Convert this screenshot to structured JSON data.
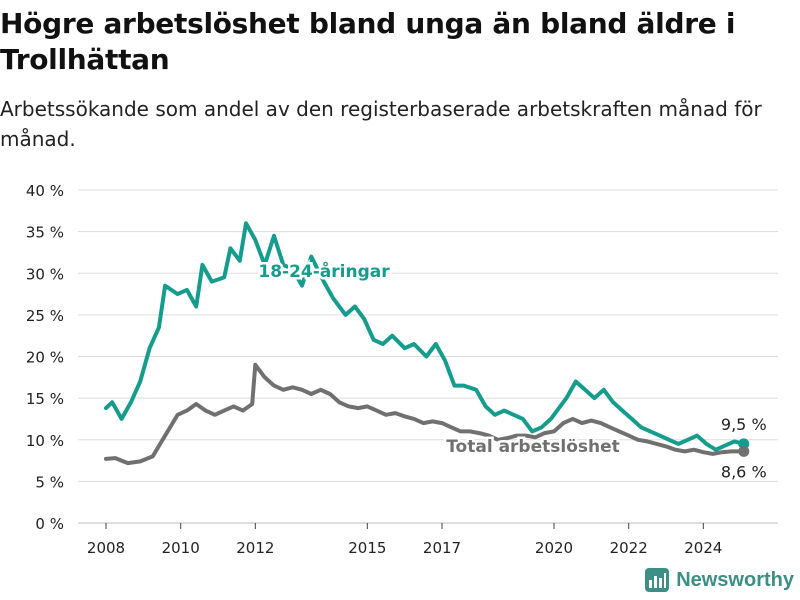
{
  "title": "Högre arbetslöshet bland unga än bland äldre i Trollhättan",
  "subtitle": "Arbetssökande som andel av den registerbaserade arbetskraften månad för månad.",
  "brand": {
    "name": "Newsworthy",
    "color": "#3c8f86"
  },
  "chart_data": {
    "type": "line",
    "y_ticks": [
      "0 %",
      "5 %",
      "10 %",
      "15 %",
      "20 %",
      "25 %",
      "30 %",
      "35 %",
      "40 %"
    ],
    "x_ticks": [
      "2008",
      "2010",
      "2012",
      "2015",
      "2017",
      "2020",
      "2022",
      "2024"
    ],
    "ylim": [
      0,
      40
    ],
    "xlim": [
      "2007-04",
      "2026-01"
    ],
    "grid": true,
    "legend": "inline labels",
    "series": [
      {
        "name": "18-24-åringar",
        "color": "#169c8d",
        "end_label": "9,5 %",
        "points": [
          [
            "2008-01",
            13.8
          ],
          [
            "2008-03",
            14.5
          ],
          [
            "2008-06",
            12.5
          ],
          [
            "2008-09",
            14.5
          ],
          [
            "2008-12",
            17.0
          ],
          [
            "2009-03",
            21.0
          ],
          [
            "2009-06",
            23.5
          ],
          [
            "2009-08",
            28.5
          ],
          [
            "2009-12",
            27.5
          ],
          [
            "2010-03",
            28.0
          ],
          [
            "2010-06",
            26.0
          ],
          [
            "2010-08",
            31.0
          ],
          [
            "2010-11",
            29.0
          ],
          [
            "2011-03",
            29.5
          ],
          [
            "2011-05",
            33.0
          ],
          [
            "2011-08",
            31.5
          ],
          [
            "2011-10",
            36.0
          ],
          [
            "2012-01",
            34.0
          ],
          [
            "2012-04",
            31.0
          ],
          [
            "2012-07",
            34.5
          ],
          [
            "2012-10",
            31.0
          ],
          [
            "2013-01",
            30.5
          ],
          [
            "2013-04",
            28.5
          ],
          [
            "2013-07",
            32.0
          ],
          [
            "2013-11",
            29.0
          ],
          [
            "2014-02",
            27.0
          ],
          [
            "2014-06",
            25.0
          ],
          [
            "2014-09",
            26.0
          ],
          [
            "2014-12",
            24.5
          ],
          [
            "2015-03",
            22.0
          ],
          [
            "2015-06",
            21.5
          ],
          [
            "2015-09",
            22.5
          ],
          [
            "2016-01",
            21.0
          ],
          [
            "2016-04",
            21.5
          ],
          [
            "2016-08",
            20.0
          ],
          [
            "2016-11",
            21.5
          ],
          [
            "2017-02",
            19.5
          ],
          [
            "2017-05",
            16.5
          ],
          [
            "2017-08",
            16.5
          ],
          [
            "2017-12",
            16.0
          ],
          [
            "2018-03",
            14.0
          ],
          [
            "2018-06",
            13.0
          ],
          [
            "2018-09",
            13.5
          ],
          [
            "2018-12",
            13.0
          ],
          [
            "2019-03",
            12.5
          ],
          [
            "2019-06",
            11.0
          ],
          [
            "2019-09",
            11.5
          ],
          [
            "2019-12",
            12.5
          ],
          [
            "2020-02",
            13.5
          ],
          [
            "2020-05",
            15.0
          ],
          [
            "2020-08",
            17.0
          ],
          [
            "2020-11",
            16.0
          ],
          [
            "2021-02",
            15.0
          ],
          [
            "2021-05",
            16.0
          ],
          [
            "2021-08",
            14.5
          ],
          [
            "2021-11",
            13.5
          ],
          [
            "2022-02",
            12.5
          ],
          [
            "2022-05",
            11.5
          ],
          [
            "2022-08",
            11.0
          ],
          [
            "2022-11",
            10.5
          ],
          [
            "2023-02",
            10.0
          ],
          [
            "2023-05",
            9.5
          ],
          [
            "2023-08",
            10.0
          ],
          [
            "2023-11",
            10.5
          ],
          [
            "2024-02",
            9.5
          ],
          [
            "2024-05",
            8.8
          ],
          [
            "2024-08",
            9.3
          ],
          [
            "2024-11",
            9.8
          ],
          [
            "2025-02",
            9.5
          ]
        ]
      },
      {
        "name": "Total arbetslöshet",
        "color": "#707070",
        "end_label": "8,6 %",
        "points": [
          [
            "2008-01",
            7.7
          ],
          [
            "2008-04",
            7.8
          ],
          [
            "2008-08",
            7.2
          ],
          [
            "2008-12",
            7.4
          ],
          [
            "2009-04",
            8.0
          ],
          [
            "2009-08",
            10.5
          ],
          [
            "2009-12",
            13.0
          ],
          [
            "2010-03",
            13.5
          ],
          [
            "2010-06",
            14.3
          ],
          [
            "2010-09",
            13.5
          ],
          [
            "2010-12",
            13.0
          ],
          [
            "2011-03",
            13.5
          ],
          [
            "2011-06",
            14.0
          ],
          [
            "2011-09",
            13.5
          ],
          [
            "2011-12",
            14.3
          ],
          [
            "2012-01",
            19.0
          ],
          [
            "2012-04",
            17.5
          ],
          [
            "2012-07",
            16.5
          ],
          [
            "2012-10",
            16.0
          ],
          [
            "2013-01",
            16.3
          ],
          [
            "2013-04",
            16.0
          ],
          [
            "2013-07",
            15.5
          ],
          [
            "2013-10",
            16.0
          ],
          [
            "2014-01",
            15.5
          ],
          [
            "2014-04",
            14.5
          ],
          [
            "2014-07",
            14.0
          ],
          [
            "2014-10",
            13.8
          ],
          [
            "2015-01",
            14.0
          ],
          [
            "2015-04",
            13.5
          ],
          [
            "2015-07",
            13.0
          ],
          [
            "2015-10",
            13.2
          ],
          [
            "2016-01",
            12.8
          ],
          [
            "2016-04",
            12.5
          ],
          [
            "2016-07",
            12.0
          ],
          [
            "2016-10",
            12.2
          ],
          [
            "2017-01",
            12.0
          ],
          [
            "2017-04",
            11.5
          ],
          [
            "2017-07",
            11.0
          ],
          [
            "2017-10",
            11.0
          ],
          [
            "2018-01",
            10.8
          ],
          [
            "2018-04",
            10.5
          ],
          [
            "2018-07",
            10.0
          ],
          [
            "2018-10",
            10.2
          ],
          [
            "2019-01",
            10.5
          ],
          [
            "2019-04",
            10.5
          ],
          [
            "2019-07",
            10.3
          ],
          [
            "2019-10",
            10.8
          ],
          [
            "2020-01",
            11.0
          ],
          [
            "2020-04",
            12.0
          ],
          [
            "2020-07",
            12.5
          ],
          [
            "2020-10",
            12.0
          ],
          [
            "2021-01",
            12.3
          ],
          [
            "2021-04",
            12.0
          ],
          [
            "2021-07",
            11.5
          ],
          [
            "2021-10",
            11.0
          ],
          [
            "2022-01",
            10.5
          ],
          [
            "2022-04",
            10.0
          ],
          [
            "2022-07",
            9.8
          ],
          [
            "2022-10",
            9.5
          ],
          [
            "2023-01",
            9.2
          ],
          [
            "2023-04",
            8.8
          ],
          [
            "2023-07",
            8.6
          ],
          [
            "2023-10",
            8.8
          ],
          [
            "2024-01",
            8.5
          ],
          [
            "2024-04",
            8.3
          ],
          [
            "2024-07",
            8.5
          ],
          [
            "2024-10",
            8.6
          ],
          [
            "2025-02",
            8.6
          ]
        ]
      }
    ],
    "annotations": [
      {
        "text": "18-24-åringar",
        "series": 0
      },
      {
        "text": "Total arbetslöshet",
        "series": 1
      }
    ]
  }
}
